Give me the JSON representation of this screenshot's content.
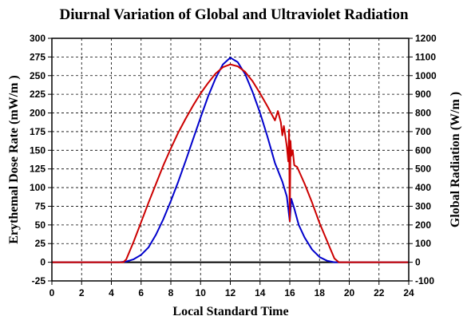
{
  "chart_data": {
    "type": "line",
    "title": "Diurnal Variation of Global and Ultraviolet Radiation",
    "xlabel": "Local Standard Time",
    "ylabel": "Erythemal Dose Rate (mW/m )",
    "y2label": "Global Radiation (W/m )",
    "xlim": [
      0,
      24
    ],
    "ylim": [
      -25,
      300
    ],
    "y2lim": [
      -100,
      1200
    ],
    "xticks": [
      "0",
      "2",
      "4",
      "6",
      "8",
      "10",
      "12",
      "14",
      "16",
      "18",
      "20",
      "22",
      "24"
    ],
    "yticks": [
      "-25",
      "0",
      "25",
      "50",
      "75",
      "100",
      "125",
      "150",
      "175",
      "200",
      "225",
      "250",
      "275",
      "300"
    ],
    "y2ticks": [
      "-100",
      "0",
      "100",
      "200",
      "300",
      "400",
      "500",
      "600",
      "700",
      "800",
      "900",
      "1000",
      "1100",
      "1200"
    ],
    "grid": true,
    "colors": {
      "uv": "#0000cc",
      "global": "#cc0000"
    },
    "series": [
      {
        "key": "uv",
        "axis": "left",
        "x": [
          0,
          4.5,
          5,
          5.5,
          6,
          6.5,
          7,
          7.5,
          8,
          8.5,
          9,
          9.5,
          10,
          10.5,
          11,
          11.5,
          12,
          12.5,
          13,
          13.5,
          14,
          14.5,
          15,
          15.5,
          15.8,
          15.9,
          16.0,
          16.1,
          16.3,
          16.6,
          17,
          17.5,
          18,
          18.5,
          19,
          19.5,
          20,
          24
        ],
        "y": [
          0,
          0,
          1,
          4,
          10,
          20,
          37,
          58,
          82,
          108,
          136,
          165,
          194,
          222,
          246,
          265,
          274,
          268,
          252,
          228,
          200,
          168,
          133,
          108,
          88,
          72,
          55,
          85,
          72,
          50,
          33,
          17,
          7,
          2,
          0,
          0,
          0,
          0
        ]
      },
      {
        "key": "global",
        "axis": "right",
        "x": [
          0,
          4.8,
          5,
          5.5,
          6,
          6.5,
          7,
          7.5,
          8,
          8.5,
          9,
          9.5,
          10,
          10.5,
          11,
          11.5,
          12,
          12.5,
          13,
          13.5,
          14,
          14.5,
          15,
          15.2,
          15.4,
          15.5,
          15.6,
          15.8,
          15.9,
          15.95,
          16.0,
          16.05,
          16.1,
          16.2,
          16.3,
          16.5,
          17,
          17.5,
          18,
          18.5,
          19,
          19.3,
          20,
          24
        ],
        "y": [
          0,
          0,
          15,
          110,
          215,
          320,
          420,
          520,
          610,
          695,
          770,
          840,
          905,
          960,
          1010,
          1045,
          1060,
          1050,
          1020,
          970,
          905,
          835,
          760,
          810,
          750,
          680,
          730,
          620,
          540,
          710,
          220,
          650,
          570,
          600,
          520,
          510,
          420,
          320,
          210,
          115,
          20,
          0,
          0,
          0
        ]
      }
    ]
  }
}
